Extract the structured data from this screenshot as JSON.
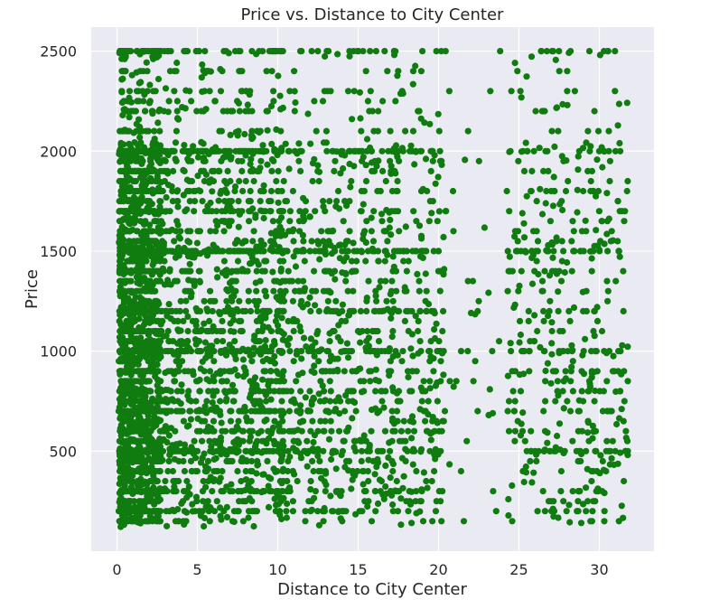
{
  "chart_data": {
    "type": "scatter",
    "title": "Price vs. Distance to City Center",
    "xlabel": "Distance to City Center",
    "ylabel": "Price",
    "xlim": [
      -1.6,
      33.4
    ],
    "ylim": [
      0,
      2620
    ],
    "xticks": [
      0,
      5,
      10,
      15,
      20,
      25,
      30
    ],
    "yticks": [
      500,
      1000,
      1500,
      2000,
      2500
    ],
    "grid": true,
    "background_color": "#eaeaf2",
    "grid_color": "#ffffff",
    "point_color": "#107c10",
    "series": [
      {
        "description": "Approximately 10,000 listings: dense horizontal bands at round prices (e.g. 1000, 1200, 1500, 1800, 2000, 2500); most listings between 0 and 11 units from the center, thinning out toward 18, a gap around 22-24, and a second cluster between 24 and 32.",
        "x": [
          0.5,
          1.0,
          1.5,
          2.0,
          3.0,
          4.5,
          6.0,
          8.0,
          10.0,
          12.0,
          14.0,
          16.0,
          18.0,
          19.0,
          20.0,
          22.5,
          24.5,
          26.0,
          27.0,
          28.0,
          29.5,
          30.5,
          31.5
        ],
        "y": [
          1000,
          1500,
          2000,
          800,
          1200,
          500,
          1000,
          700,
          2000,
          1500,
          1200,
          1000,
          1300,
          800,
          1500,
          1250,
          1000,
          500,
          1800,
          2400,
          1000,
          700,
          1200
        ]
      }
    ]
  }
}
